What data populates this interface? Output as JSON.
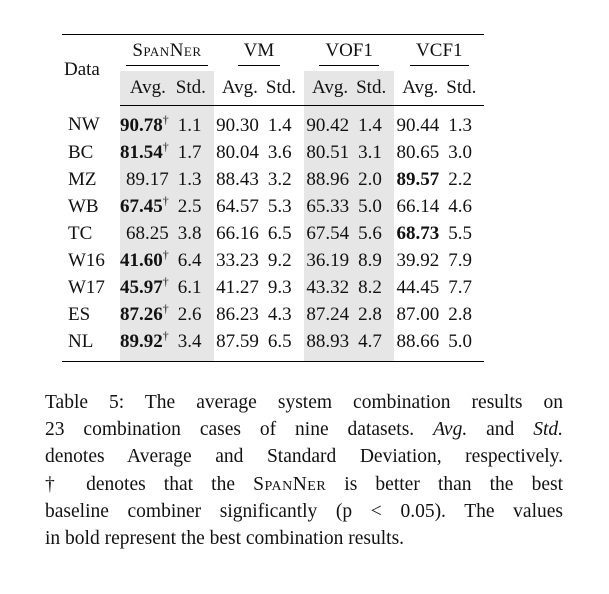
{
  "table": {
    "data_header": "Data",
    "groups": [
      {
        "name": "SpanNer",
        "small_caps": true
      },
      {
        "name": "VM",
        "small_caps": false
      },
      {
        "name": "VOF1",
        "small_caps": false
      },
      {
        "name": "VCF1",
        "small_caps": false
      }
    ],
    "sub_headers": {
      "avg": "Avg.",
      "std": "Std."
    },
    "dagger": "†",
    "shaded_columns": [
      "SpanNer",
      "VOF1"
    ],
    "rows": [
      {
        "name": "NW",
        "cells": [
          {
            "avg": "90.78",
            "std": "1.1",
            "bold": true,
            "dagger": true
          },
          {
            "avg": "90.30",
            "std": "1.4"
          },
          {
            "avg": "90.42",
            "std": "1.4"
          },
          {
            "avg": "90.44",
            "std": "1.3"
          }
        ]
      },
      {
        "name": "BC",
        "cells": [
          {
            "avg": "81.54",
            "std": "1.7",
            "bold": true,
            "dagger": true
          },
          {
            "avg": "80.04",
            "std": "3.6"
          },
          {
            "avg": "80.51",
            "std": "3.1"
          },
          {
            "avg": "80.65",
            "std": "3.0"
          }
        ]
      },
      {
        "name": "MZ",
        "cells": [
          {
            "avg": "89.17",
            "std": "1.3"
          },
          {
            "avg": "88.43",
            "std": "3.2"
          },
          {
            "avg": "88.96",
            "std": "2.0"
          },
          {
            "avg": "89.57",
            "std": "2.2",
            "bold": true
          }
        ]
      },
      {
        "name": "WB",
        "cells": [
          {
            "avg": "67.45",
            "std": "2.5",
            "bold": true,
            "dagger": true
          },
          {
            "avg": "64.57",
            "std": "5.3"
          },
          {
            "avg": "65.33",
            "std": "5.0"
          },
          {
            "avg": "66.14",
            "std": "4.6"
          }
        ]
      },
      {
        "name": "TC",
        "cells": [
          {
            "avg": "68.25",
            "std": "3.8"
          },
          {
            "avg": "66.16",
            "std": "6.5"
          },
          {
            "avg": "67.54",
            "std": "5.6"
          },
          {
            "avg": "68.73",
            "std": "5.5",
            "bold": true
          }
        ]
      },
      {
        "name": "W16",
        "cells": [
          {
            "avg": "41.60",
            "std": "6.4",
            "bold": true,
            "dagger": true
          },
          {
            "avg": "33.23",
            "std": "9.2"
          },
          {
            "avg": "36.19",
            "std": "8.9"
          },
          {
            "avg": "39.92",
            "std": "7.9"
          }
        ]
      },
      {
        "name": "W17",
        "cells": [
          {
            "avg": "45.97",
            "std": "6.1",
            "bold": true,
            "dagger": true
          },
          {
            "avg": "41.27",
            "std": "9.3"
          },
          {
            "avg": "43.32",
            "std": "8.2"
          },
          {
            "avg": "44.45",
            "std": "7.7"
          }
        ]
      },
      {
        "name": "ES",
        "cells": [
          {
            "avg": "87.26",
            "std": "2.6",
            "bold": true,
            "dagger": true
          },
          {
            "avg": "86.23",
            "std": "4.3"
          },
          {
            "avg": "87.24",
            "std": "2.8"
          },
          {
            "avg": "87.00",
            "std": "2.8"
          }
        ]
      },
      {
        "name": "NL",
        "cells": [
          {
            "avg": "89.92",
            "std": "3.4",
            "bold": true,
            "dagger": true
          },
          {
            "avg": "87.59",
            "std": "6.5"
          },
          {
            "avg": "88.93",
            "std": "4.7"
          },
          {
            "avg": "88.66",
            "std": "5.0"
          }
        ]
      }
    ]
  },
  "caption": {
    "l1": "Table 5: The average system combination results on",
    "l2a": "23 combination cases of nine datasets. ",
    "l2b": "Avg.",
    "l2c": " and ",
    "l2d": "Std.",
    "l3": "denotes Average and Standard Deviation, respectively.",
    "l4a": "† denotes that the ",
    "l4b": "SpanNer",
    "l4c": " is better than the best",
    "l5": "baseline combiner significantly (p < 0.05). The values",
    "l6": "in bold represent the best combination results."
  }
}
